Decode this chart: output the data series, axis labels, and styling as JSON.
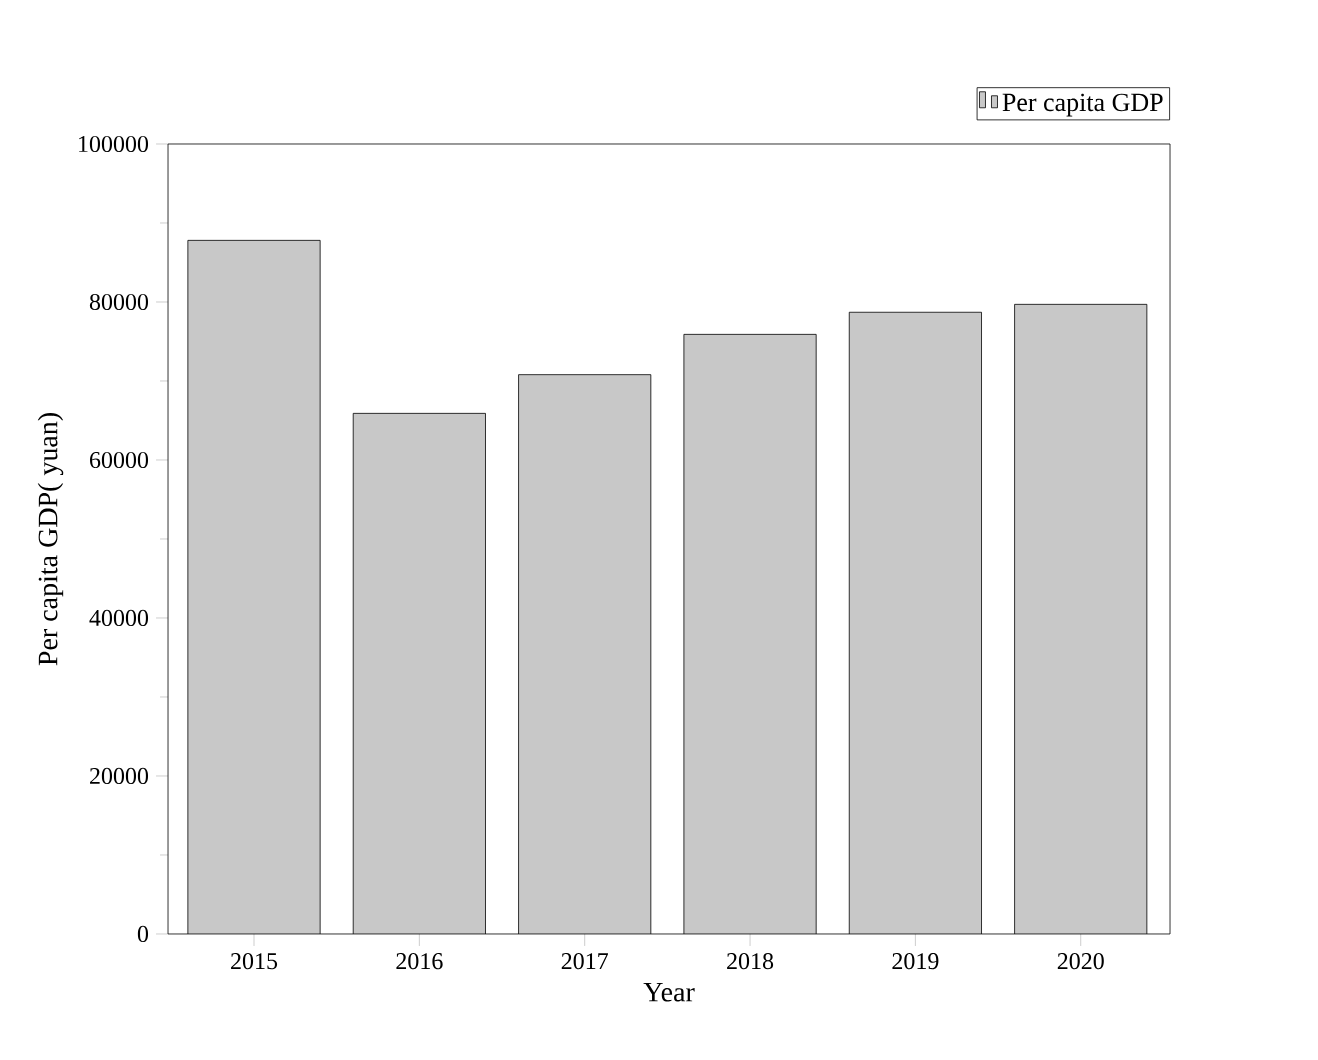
{
  "chart_data": {
    "type": "bar",
    "xlabel": "Year",
    "ylabel": "Per capita GDP( yuan)",
    "categories": [
      "2015",
      "2016",
      "2017",
      "2018",
      "2019",
      "2020"
    ],
    "series": [
      {
        "name": "Per capita GDP",
        "color": "#c8c8c8",
        "values": [
          87800,
          65900,
          70800,
          75900,
          78700,
          79700
        ]
      }
    ],
    "ylim": [
      0,
      100000
    ],
    "yticks": [
      0,
      20000,
      40000,
      60000,
      80000,
      100000
    ],
    "grid": false,
    "legend": "top right"
  }
}
